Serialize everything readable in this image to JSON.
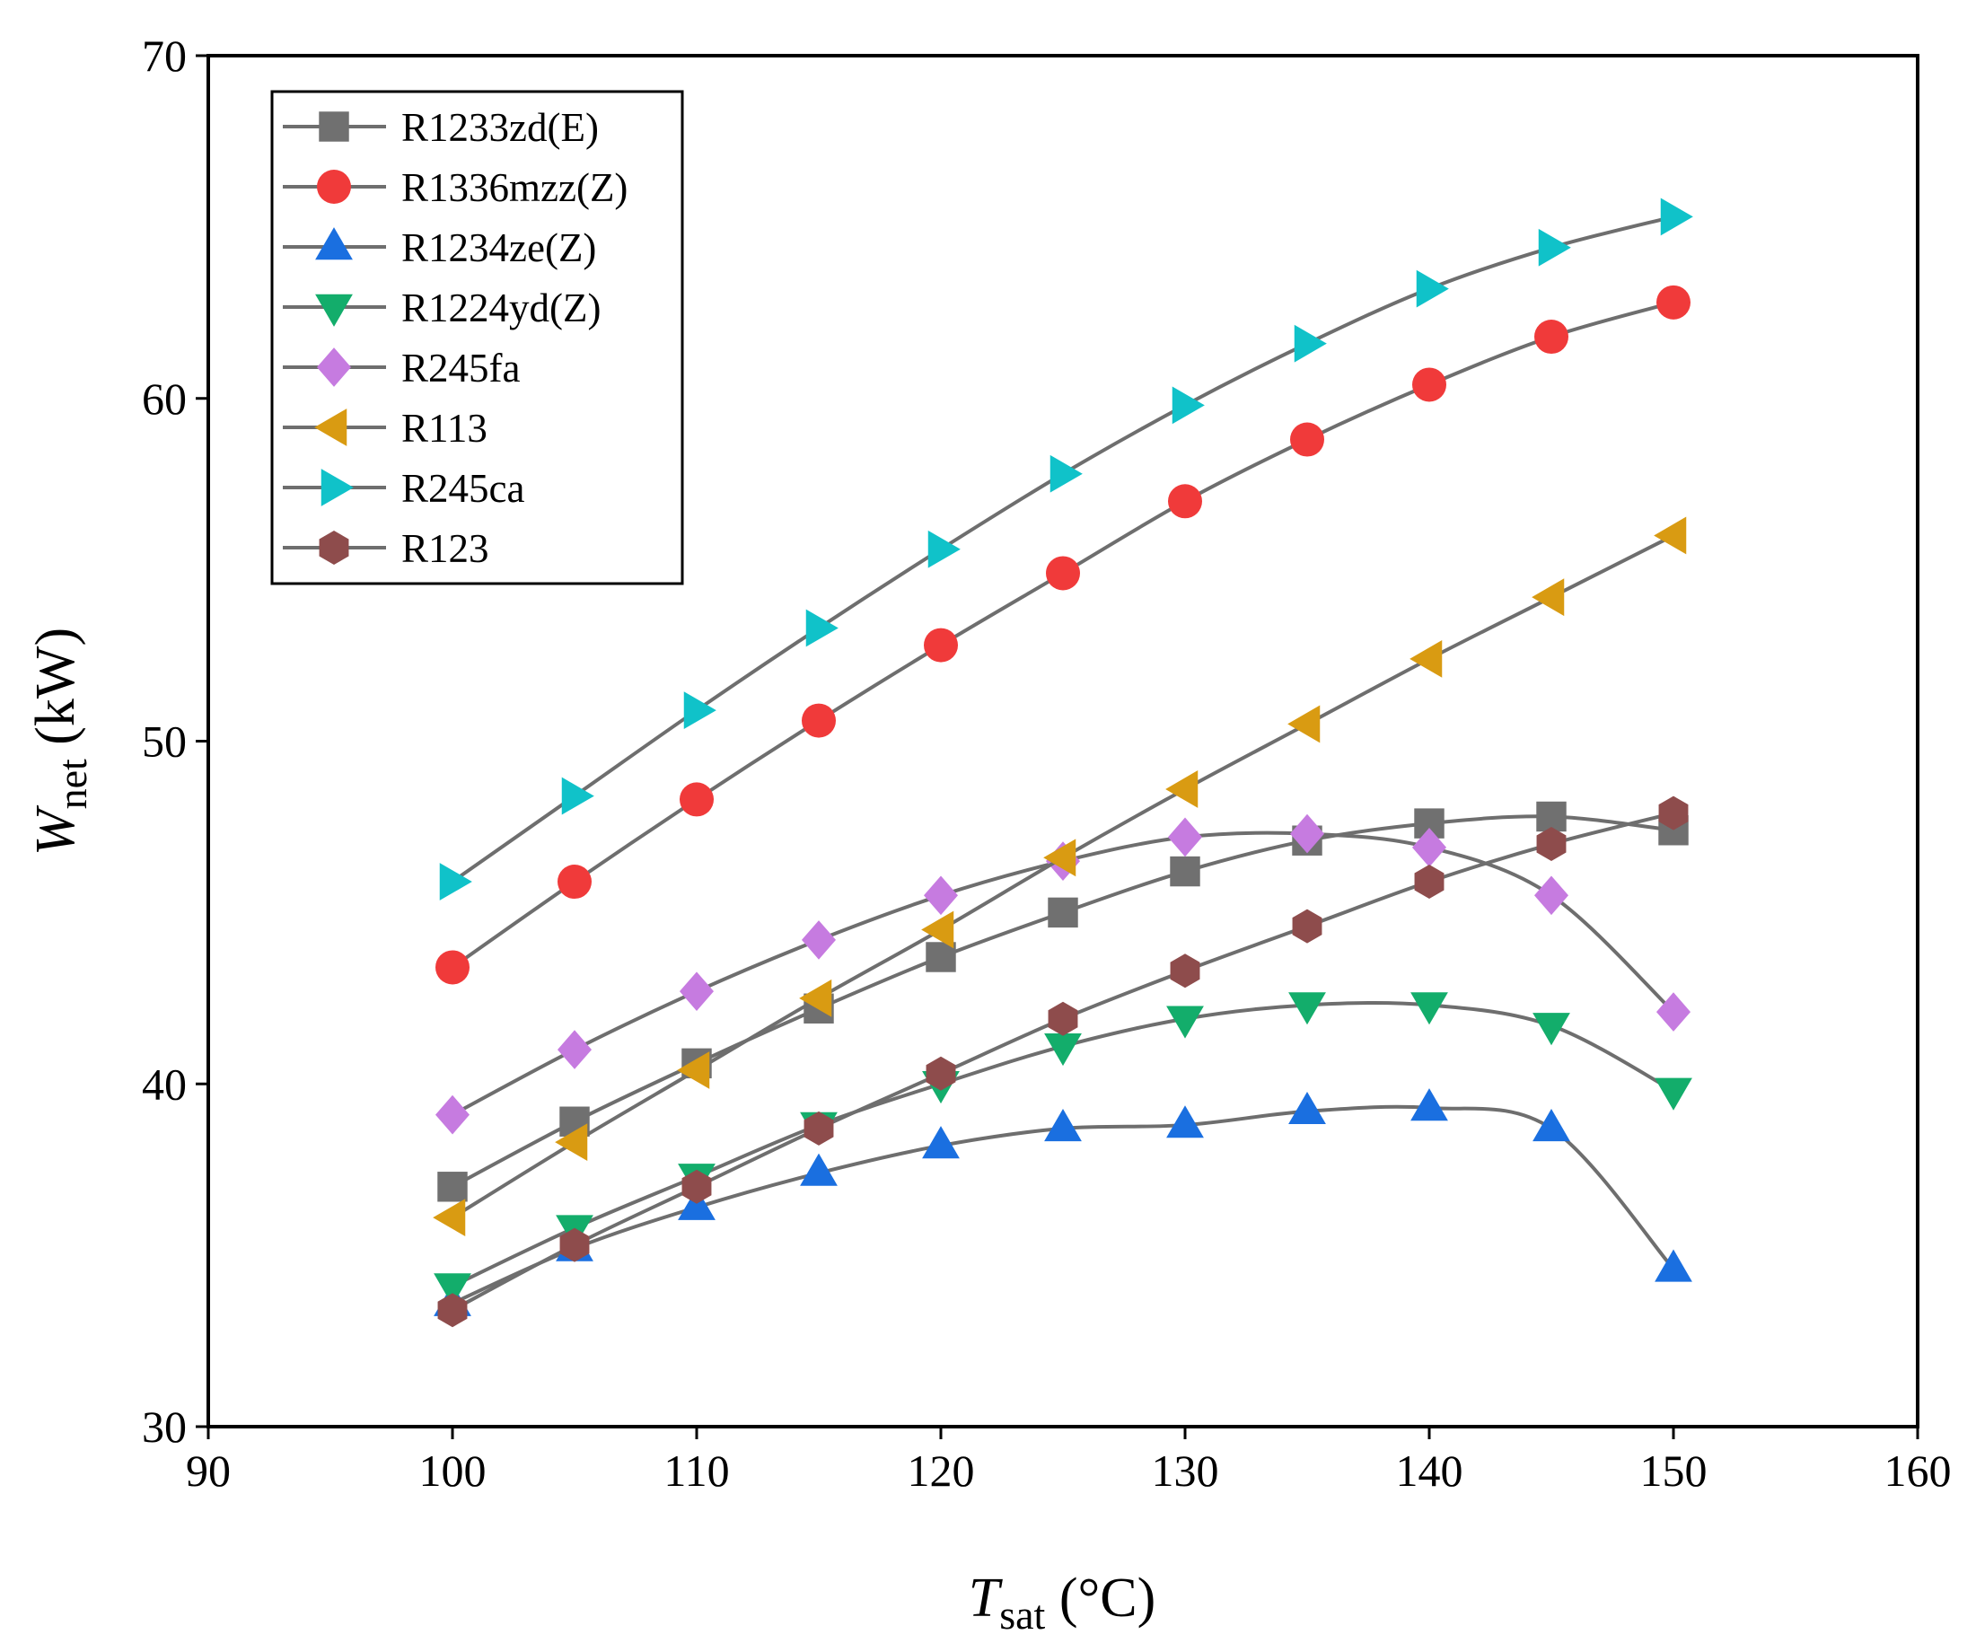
{
  "chart_data": {
    "type": "line",
    "title": "",
    "xlabel": {
      "var": "T",
      "sub": "sat",
      "unit": " (°C)"
    },
    "ylabel": {
      "var": "W",
      "sub": "net",
      "unit": " (kW)"
    },
    "xlim": [
      90,
      160
    ],
    "ylim": [
      30,
      70
    ],
    "xticks": [
      "90",
      "100",
      "110",
      "120",
      "130",
      "140",
      "150",
      "160"
    ],
    "yticks": [
      "30",
      "40",
      "50",
      "60",
      "70"
    ],
    "grid": false,
    "legend_position": "top-left",
    "line_color": "#6e6e6e",
    "x": [
      100,
      105,
      110,
      115,
      120,
      125,
      130,
      135,
      140,
      145,
      150
    ],
    "series": [
      {
        "name": "R1233zd(E)",
        "marker": "square",
        "color": "#707070",
        "values": [
          37.0,
          38.9,
          40.6,
          42.2,
          43.7,
          45.0,
          46.2,
          47.1,
          47.6,
          47.8,
          47.4
        ]
      },
      {
        "name": "R1336mzz(Z)",
        "marker": "circle",
        "color": "#f03a3a",
        "values": [
          43.4,
          45.9,
          48.3,
          50.6,
          52.8,
          54.9,
          57.0,
          58.8,
          60.4,
          61.8,
          62.8
        ]
      },
      {
        "name": "R1234ze(Z)",
        "marker": "triangle-up",
        "color": "#1a6fe0",
        "values": [
          33.6,
          35.2,
          36.4,
          37.4,
          38.2,
          38.7,
          38.8,
          39.2,
          39.3,
          38.7,
          34.6
        ]
      },
      {
        "name": "R1224yd(Z)",
        "marker": "triangle-down",
        "color": "#13ad6b",
        "values": [
          34.1,
          35.8,
          37.3,
          38.8,
          40.0,
          41.1,
          41.9,
          42.3,
          42.3,
          41.7,
          39.8
        ]
      },
      {
        "name": "R245fa",
        "marker": "diamond",
        "color": "#c67be0",
        "values": [
          39.1,
          41.0,
          42.7,
          44.2,
          45.5,
          46.5,
          47.2,
          47.3,
          46.9,
          45.5,
          42.1
        ]
      },
      {
        "name": "R113",
        "marker": "triangle-left",
        "color": "#d99b12",
        "values": [
          36.1,
          38.3,
          40.4,
          42.5,
          44.5,
          46.6,
          48.6,
          50.5,
          52.4,
          54.2,
          56.0
        ]
      },
      {
        "name": "R245ca",
        "marker": "triangle-right",
        "color": "#10c2c9",
        "values": [
          45.9,
          48.4,
          50.9,
          53.3,
          55.6,
          57.8,
          59.8,
          61.6,
          63.2,
          64.4,
          65.3
        ]
      },
      {
        "name": "R123",
        "marker": "hexagon",
        "color": "#8e4c4c",
        "values": [
          33.4,
          35.3,
          37.0,
          38.7,
          40.3,
          41.9,
          43.3,
          44.6,
          45.9,
          47.0,
          47.9
        ]
      }
    ]
  }
}
